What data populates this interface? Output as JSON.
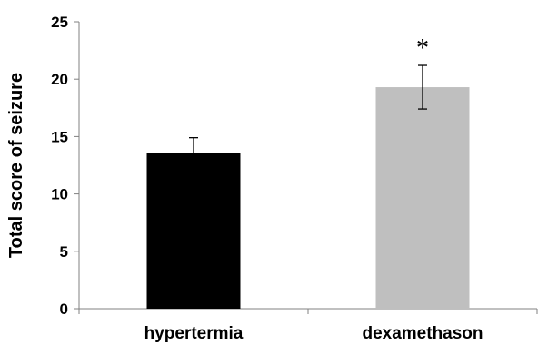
{
  "chart_data": {
    "type": "bar",
    "categories": [
      "hypertermia",
      "dexamethason"
    ],
    "values": [
      13.6,
      19.3
    ],
    "error": [
      1.3,
      1.9
    ],
    "colors": [
      "#000000",
      "#bfbfbf"
    ],
    "ylabel": "Total score of seizure",
    "xlabel": "",
    "ylim": [
      0,
      25
    ],
    "yticks": [
      0,
      5,
      10,
      15,
      20,
      25
    ],
    "annotations": [
      {
        "category": "dexamethason",
        "text": "*"
      }
    ],
    "grid": false
  }
}
